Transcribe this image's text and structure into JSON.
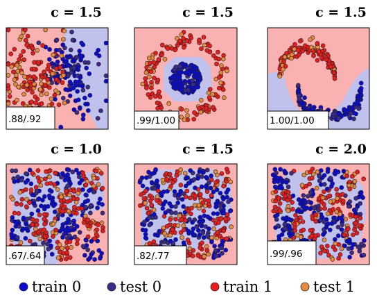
{
  "chart_data": [
    {
      "type": "scatter",
      "title": "c = 1.5",
      "dataset": "blobs",
      "score": ".88/.92",
      "grid": false,
      "colors": {
        "region0": "#c0c1ec",
        "region1": "#f9b1b1"
      }
    },
    {
      "type": "scatter",
      "title": "c = 1.5",
      "dataset": "circles",
      "score": ".99/1.00",
      "grid": false,
      "colors": {
        "region0": "#c0c1ec",
        "region1": "#f9b1b1"
      }
    },
    {
      "type": "scatter",
      "title": "c = 1.5",
      "dataset": "moons",
      "score": "1.00/1.00",
      "grid": false,
      "colors": {
        "region0": "#c0c1ec",
        "region1": "#f9b1b1"
      }
    },
    {
      "type": "scatter",
      "title": "c = 1.0",
      "dataset": "checker",
      "score": ".67/.64",
      "grid": false,
      "colors": {
        "region0": "#c0c1ec",
        "region1": "#f9b1b1"
      }
    },
    {
      "type": "scatter",
      "title": "c = 1.5",
      "dataset": "checker",
      "score": ".82/.77",
      "grid": false,
      "colors": {
        "region0": "#c0c1ec",
        "region1": "#f9b1b1"
      }
    },
    {
      "type": "scatter",
      "title": "c = 2.0",
      "dataset": "checker",
      "score": ".99/.96",
      "grid": false,
      "colors": {
        "region0": "#c0c1ec",
        "region1": "#f9b1b1"
      }
    }
  ],
  "legend": {
    "placement": "bottom",
    "entries": [
      {
        "label": "train 0",
        "color": "#0a0ad8"
      },
      {
        "label": "test 0",
        "color": "#3a2a8a"
      },
      {
        "label": "train 1",
        "color": "#ee1a1a"
      },
      {
        "label": "test 1",
        "color": "#e88a3a"
      }
    ]
  }
}
